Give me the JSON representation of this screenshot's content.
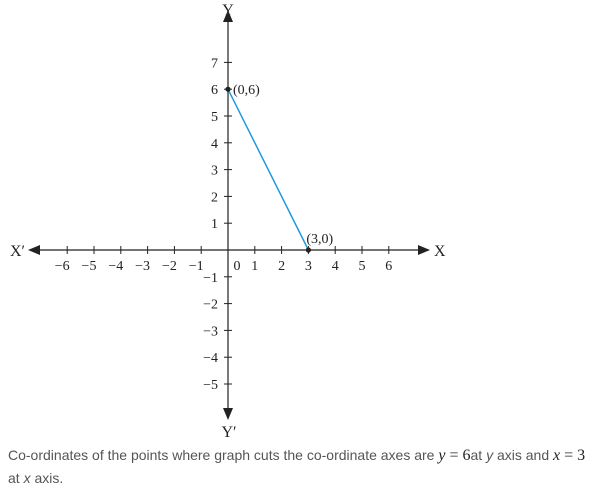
{
  "chart_data": {
    "type": "line",
    "x_axis_name": "X",
    "x_axis_neg_name": "X′",
    "y_axis_name": "Y",
    "y_axis_neg_name": "Y′",
    "xlim": [
      -7,
      7
    ],
    "ylim": [
      -6,
      8
    ],
    "x_ticks": [
      -6,
      -5,
      -4,
      -3,
      -2,
      -1,
      1,
      2,
      3,
      4,
      5,
      6
    ],
    "x_tick_labels": [
      "−6",
      "−5",
      "−4",
      "−3",
      "−2",
      "−1",
      "1",
      "2",
      "3",
      "4",
      "5",
      "6"
    ],
    "origin_label": "0",
    "y_ticks": [
      7,
      6,
      5,
      4,
      3,
      2,
      1,
      -1,
      -2,
      -3,
      -4,
      -5
    ],
    "y_tick_labels": [
      "7",
      "6",
      "5",
      "4",
      "3",
      "2",
      "1",
      "−1",
      "−2",
      "−3",
      "−4",
      "−5"
    ],
    "series": [
      {
        "x": [
          0,
          3
        ],
        "y": [
          6,
          0
        ],
        "color": "#1f9be0"
      }
    ],
    "points": [
      {
        "x": 0,
        "y": 6,
        "label": "(0,6)"
      },
      {
        "x": 3,
        "y": 0,
        "label": "(3,0)"
      }
    ],
    "axis_color": "#222222",
    "grid": false
  },
  "caption": {
    "part1": "Co-ordinates of the points where graph cuts the co-ordinate axes are",
    "eq1_var": "y",
    "eq1_rest": " = 6",
    "part2": "at ",
    "part2_var": "y",
    "part3": " axis and",
    "eq2_var": "x",
    "eq2_rest": " = 3",
    "part4": "at ",
    "part4_var": "x",
    "part5": " axis."
  }
}
